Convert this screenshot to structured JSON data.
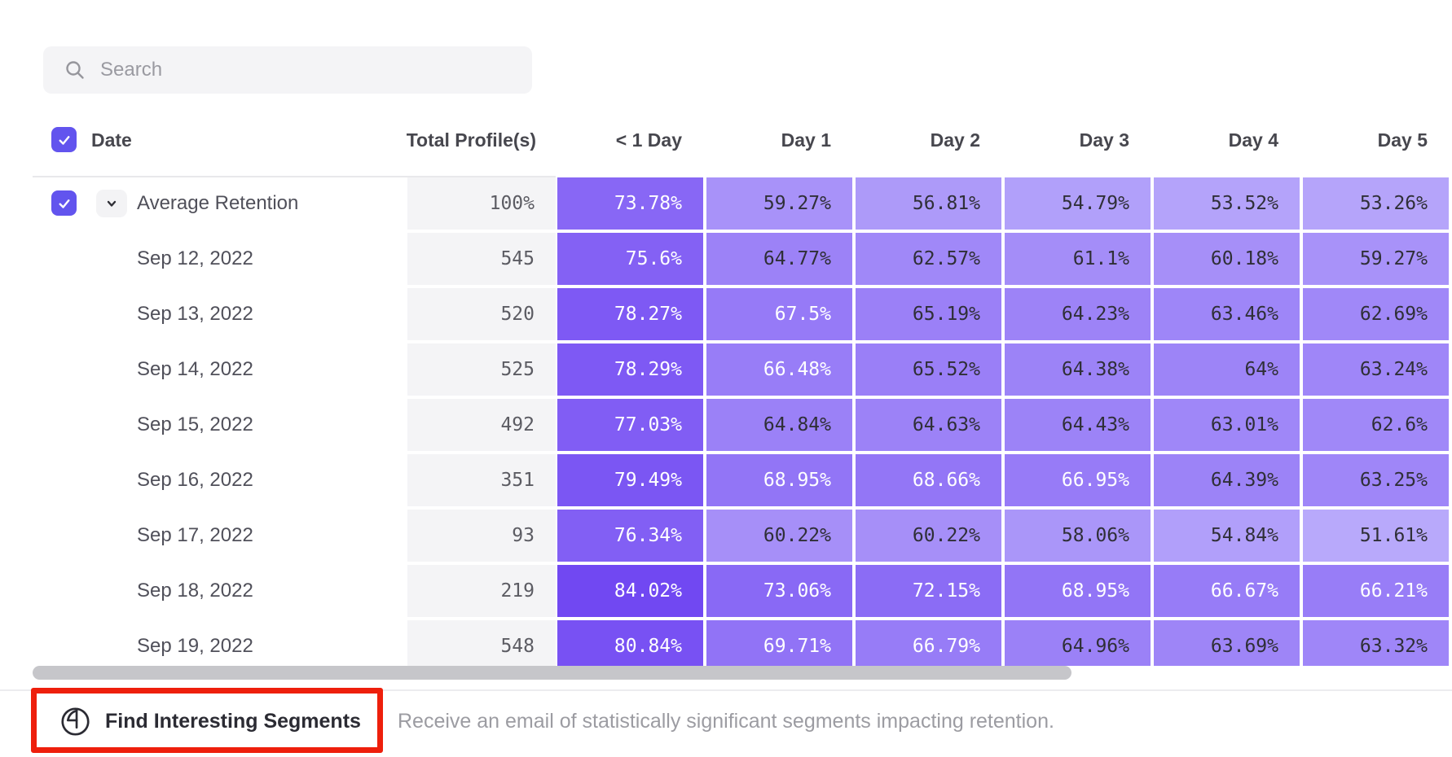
{
  "search": {
    "placeholder": "Search"
  },
  "table": {
    "header": {
      "date_label": "Date",
      "total_label": "Total Profile(s)",
      "day_columns": [
        "< 1 Day",
        "Day 1",
        "Day 2",
        "Day 3",
        "Day 4",
        "Day 5"
      ]
    },
    "rows": [
      {
        "label": "Average Retention",
        "total": "100%",
        "is_average": true,
        "values": [
          73.78,
          59.27,
          56.81,
          54.79,
          53.52,
          53.26
        ]
      },
      {
        "label": "Sep 12, 2022",
        "total": "545",
        "values": [
          75.6,
          64.77,
          62.57,
          61.1,
          60.18,
          59.27
        ]
      },
      {
        "label": "Sep 13, 2022",
        "total": "520",
        "values": [
          78.27,
          67.5,
          65.19,
          64.23,
          63.46,
          62.69
        ]
      },
      {
        "label": "Sep 14, 2022",
        "total": "525",
        "values": [
          78.29,
          66.48,
          65.52,
          64.38,
          64,
          63.24
        ]
      },
      {
        "label": "Sep 15, 2022",
        "total": "492",
        "values": [
          77.03,
          64.84,
          64.63,
          64.43,
          63.01,
          62.6
        ]
      },
      {
        "label": "Sep 16, 2022",
        "total": "351",
        "values": [
          79.49,
          68.95,
          68.66,
          66.95,
          64.39,
          63.25
        ]
      },
      {
        "label": "Sep 17, 2022",
        "total": "93",
        "values": [
          76.34,
          60.22,
          60.22,
          58.06,
          54.84,
          51.61
        ]
      },
      {
        "label": "Sep 18, 2022",
        "total": "219",
        "values": [
          84.02,
          73.06,
          72.15,
          68.95,
          66.67,
          66.21
        ]
      },
      {
        "label": "Sep 19, 2022",
        "total": "548",
        "values": [
          80.84,
          69.71,
          66.79,
          64.96,
          63.69,
          63.32
        ]
      }
    ]
  },
  "footer": {
    "button_label": "Find Interesting Segments",
    "description": "Receive an email of statistically significant segments impacting retention."
  },
  "colors": {
    "accent": "#6254ee",
    "heat_light": "#bcaefb",
    "heat_dark": "#6f45f2",
    "cell_dark_text": "#2f2f37",
    "cell_light_text": "#ffffff",
    "annotation_red": "#ee1f0c",
    "scrollbar": "#c6c6ca"
  }
}
